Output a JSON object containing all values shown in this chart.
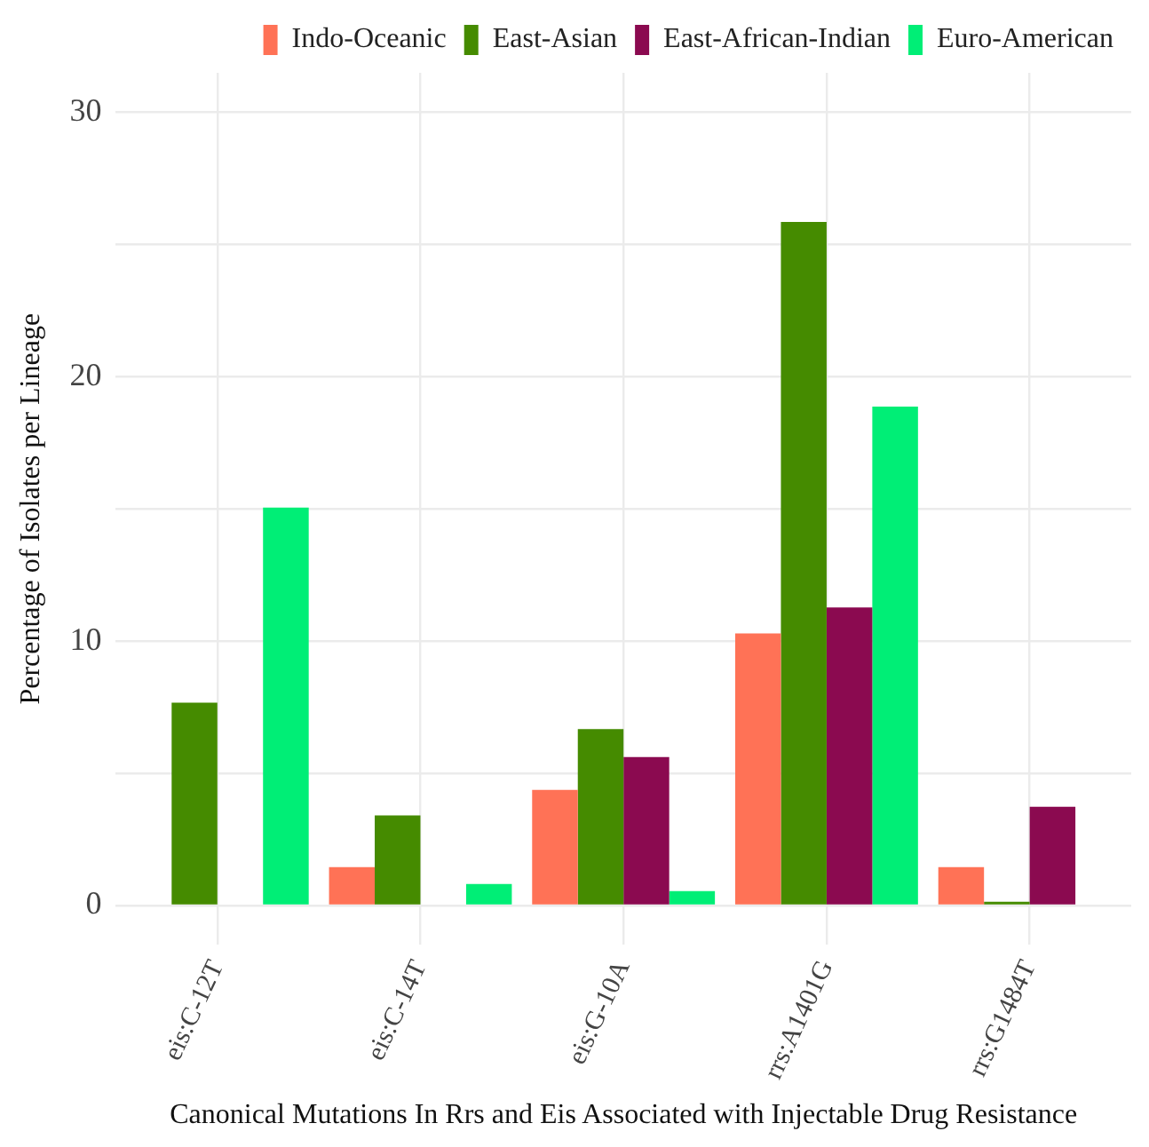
{
  "chart_data": {
    "type": "bar",
    "xlabel": "Canonical Mutations In Rrs and Eis Associated with Injectable Drug Resistance",
    "ylabel": "Percentage of Isolates per Lineage",
    "categories": [
      "eis:C-12T",
      "eis:C-14T",
      "eis:G-10A",
      "rrs:A1401G",
      "rrs:G1484T"
    ],
    "series": [
      {
        "name": "Indo-Oceanic",
        "color": "#ff7256",
        "values": [
          null,
          1.45,
          4.37,
          10.29,
          1.45
        ]
      },
      {
        "name": "East-Asian",
        "color": "#458b00",
        "values": [
          7.67,
          3.4,
          6.67,
          25.86,
          0.14
        ]
      },
      {
        "name": "East-African-Indian",
        "color": "#8b0a50",
        "values": [
          null,
          null,
          5.61,
          11.27,
          3.73
        ]
      },
      {
        "name": "Euro-American",
        "color": "#00ee76",
        "values": [
          15.05,
          0.81,
          0.54,
          18.87,
          null
        ]
      }
    ],
    "ylim": [
      -1.5,
      31.5
    ],
    "yticks": [
      0,
      {
        "value": 5,
        "label": null
      },
      10,
      {
        "value": 15,
        "label": null
      },
      20,
      {
        "value": 25,
        "label": null
      },
      30
    ],
    "grid": true,
    "legend": "top"
  }
}
